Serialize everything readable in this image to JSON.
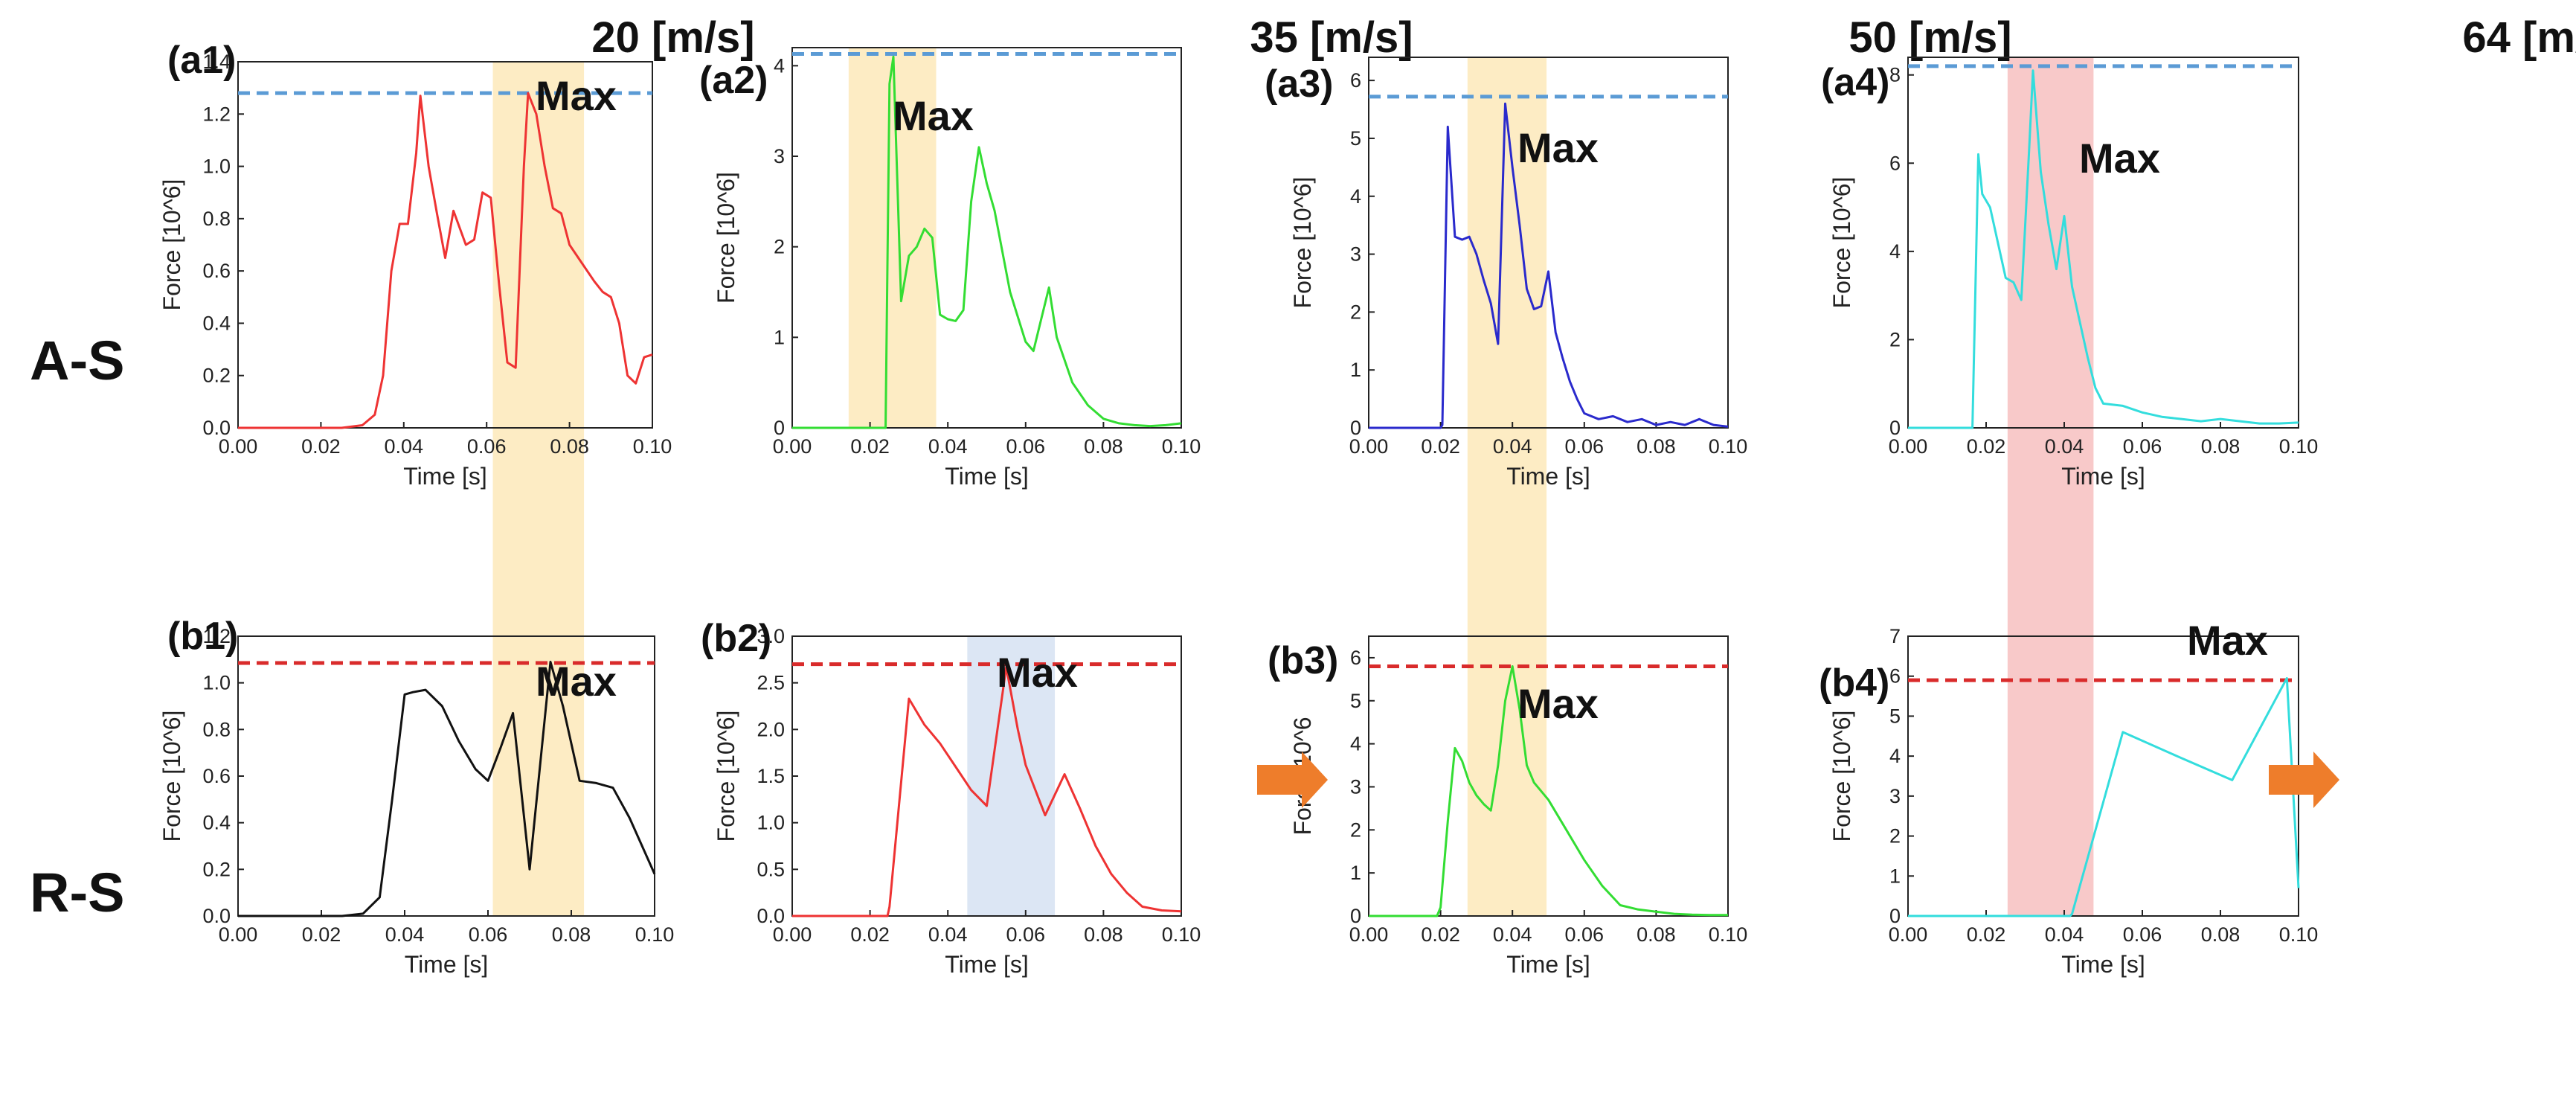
{
  "speed_headers": [
    {
      "value": "20",
      "unit": "[m/s]"
    },
    {
      "value": "35",
      "unit": "[m/s]"
    },
    {
      "value": "50",
      "unit": "[m/s]"
    },
    {
      "value": "64",
      "unit": "[m/s]"
    }
  ],
  "row_labels": [
    "A-S",
    "R-S"
  ],
  "colors": {
    "highlight_yellow": "#fdecc4",
    "highlight_blue": "#dce6f4",
    "highlight_red": "#f8c9c9",
    "max_line_blue": "#5b9bd5",
    "max_line_red": "#d92b2b",
    "arrow_orange": "#ee7d2b"
  },
  "chart_data": [
    {
      "id": "a1",
      "panel_label": "(a1)",
      "type": "line",
      "color": "#ee3333",
      "xlabel": "Time [s]",
      "ylabel": "Force [10^6]",
      "xlim": [
        0,
        0.1
      ],
      "ylim": [
        0,
        1.4
      ],
      "xticks": [
        0,
        0.02,
        0.04,
        0.06,
        0.08,
        0.1
      ],
      "xtick_labels": [
        "0.00",
        "0.02",
        "0.04",
        "0.06",
        "0.08",
        "0.10"
      ],
      "yticks": [
        0,
        0.2,
        0.4,
        0.6,
        0.8,
        1.0,
        1.2,
        1.4
      ],
      "ytick_labels": [
        "0.0",
        "0.2",
        "0.4",
        "0.6",
        "0.8",
        "1.0",
        "1.2",
        "1.4"
      ],
      "max_line": {
        "value": 1.28,
        "color": "#5b9bd5"
      },
      "highlight": {
        "x_range": [
          0.0615,
          0.0835
        ],
        "color": "#fdecc4",
        "span": "both-rows"
      },
      "max_annotation": "Max",
      "x": [
        0,
        0.025,
        0.03,
        0.033,
        0.035,
        0.037,
        0.039,
        0.041,
        0.043,
        0.044,
        0.046,
        0.048,
        0.05,
        0.052,
        0.055,
        0.057,
        0.059,
        0.061,
        0.063,
        0.065,
        0.067,
        0.069,
        0.07,
        0.072,
        0.074,
        0.076,
        0.078,
        0.08,
        0.083,
        0.086,
        0.088,
        0.09,
        0.092,
        0.094,
        0.096,
        0.098,
        0.1
      ],
      "y": [
        0,
        0,
        0.01,
        0.05,
        0.2,
        0.6,
        0.78,
        0.78,
        1.05,
        1.27,
        1.0,
        0.82,
        0.65,
        0.83,
        0.7,
        0.72,
        0.9,
        0.88,
        0.55,
        0.25,
        0.23,
        1.0,
        1.28,
        1.2,
        1.0,
        0.84,
        0.82,
        0.7,
        0.63,
        0.56,
        0.52,
        0.5,
        0.4,
        0.2,
        0.17,
        0.27,
        0.28
      ]
    },
    {
      "id": "a2",
      "panel_label": "(a2)",
      "type": "line",
      "color": "#33dd33",
      "xlabel": "Time [s]",
      "ylabel": "Force [10^6]",
      "xlim": [
        0,
        0.1
      ],
      "ylim": [
        0,
        4.2
      ],
      "xticks": [
        0,
        0.02,
        0.04,
        0.06,
        0.08,
        0.1
      ],
      "xtick_labels": [
        "0.00",
        "0.02",
        "0.04",
        "0.06",
        "0.08",
        "0.10"
      ],
      "yticks": [
        0,
        1,
        2,
        3,
        4
      ],
      "ytick_labels": [
        "0",
        "1",
        "2",
        "3",
        "4"
      ],
      "max_line": {
        "value": 4.13,
        "color": "#5b9bd5"
      },
      "highlight": {
        "x_range": [
          0.0145,
          0.037
        ],
        "color": "#fdecc4",
        "span": "panel"
      },
      "max_annotation": "Max",
      "x": [
        0,
        0.0185,
        0.02,
        0.022,
        0.024,
        0.025,
        0.026,
        0.028,
        0.03,
        0.032,
        0.034,
        0.036,
        0.038,
        0.04,
        0.042,
        0.044,
        0.046,
        0.048,
        0.05,
        0.052,
        0.056,
        0.06,
        0.062,
        0.064,
        0.066,
        0.068,
        0.072,
        0.076,
        0.08,
        0.084,
        0.088,
        0.092,
        0.096,
        0.1
      ],
      "y": [
        0,
        0,
        0,
        0,
        0,
        3.8,
        4.1,
        1.4,
        1.9,
        2.0,
        2.2,
        2.1,
        1.25,
        1.2,
        1.18,
        1.3,
        2.5,
        3.1,
        2.7,
        2.4,
        1.5,
        0.95,
        0.85,
        1.2,
        1.55,
        1.0,
        0.5,
        0.25,
        0.1,
        0.05,
        0.03,
        0.02,
        0.03,
        0.05
      ]
    },
    {
      "id": "a3",
      "panel_label": "(a3)",
      "type": "line",
      "color": "#2a2acc",
      "xlabel": "Time [s]",
      "ylabel": "Force [10^6]",
      "xlim": [
        0,
        0.1
      ],
      "ylim": [
        0,
        6.4
      ],
      "xticks": [
        0,
        0.02,
        0.04,
        0.06,
        0.08,
        0.1
      ],
      "xtick_labels": [
        "0.00",
        "0.02",
        "0.04",
        "0.06",
        "0.08",
        "0.10"
      ],
      "yticks": [
        0,
        1,
        2,
        3,
        4,
        5,
        6
      ],
      "ytick_labels": [
        "0",
        "1",
        "2",
        "3",
        "4",
        "5",
        "6"
      ],
      "max_line": {
        "value": 5.72,
        "color": "#5b9bd5"
      },
      "highlight": {
        "x_range": [
          0.0275,
          0.0495
        ],
        "color": "#fdecc4",
        "span": "both-rows"
      },
      "max_annotation": "Max",
      "x": [
        0,
        0.02,
        0.0205,
        0.022,
        0.024,
        0.026,
        0.028,
        0.03,
        0.032,
        0.034,
        0.036,
        0.038,
        0.04,
        0.042,
        0.044,
        0.046,
        0.048,
        0.05,
        0.052,
        0.054,
        0.056,
        0.058,
        0.06,
        0.064,
        0.068,
        0.072,
        0.076,
        0.08,
        0.084,
        0.088,
        0.092,
        0.096,
        0.1
      ],
      "y": [
        0,
        0,
        0.05,
        5.2,
        3.3,
        3.25,
        3.3,
        3.0,
        2.55,
        2.15,
        1.45,
        5.6,
        4.5,
        3.5,
        2.4,
        2.05,
        2.1,
        2.7,
        1.65,
        1.2,
        0.8,
        0.5,
        0.25,
        0.15,
        0.2,
        0.1,
        0.15,
        0.05,
        0.1,
        0.05,
        0.15,
        0.05,
        0.02
      ]
    },
    {
      "id": "a4",
      "panel_label": "(a4)",
      "type": "line",
      "color": "#33dddd",
      "xlabel": "Time [s]",
      "ylabel": "Force [10^6]",
      "xlim": [
        0,
        0.1
      ],
      "ylim": [
        0,
        8.4
      ],
      "xticks": [
        0,
        0.02,
        0.04,
        0.06,
        0.08,
        0.1
      ],
      "xtick_labels": [
        "0.00",
        "0.02",
        "0.04",
        "0.06",
        "0.08",
        "0.10"
      ],
      "yticks": [
        0,
        2,
        4,
        6,
        8
      ],
      "ytick_labels": [
        "0",
        "2",
        "4",
        "6",
        "8"
      ],
      "max_line": {
        "value": 8.2,
        "color": "#5b9bd5"
      },
      "highlight": {
        "x_range": [
          0.0255,
          0.0475
        ],
        "color": "#f8c9c9",
        "span": "both-rows"
      },
      "max_annotation": "Max",
      "x": [
        0,
        0.0165,
        0.018,
        0.019,
        0.021,
        0.023,
        0.025,
        0.027,
        0.029,
        0.031,
        0.032,
        0.034,
        0.036,
        0.038,
        0.04,
        0.042,
        0.044,
        0.046,
        0.048,
        0.05,
        0.055,
        0.06,
        0.065,
        0.07,
        0.075,
        0.08,
        0.085,
        0.09,
        0.095,
        0.1
      ],
      "y": [
        0,
        0,
        6.2,
        5.3,
        5.0,
        4.2,
        3.4,
        3.3,
        2.9,
        6.3,
        8.1,
        5.8,
        4.6,
        3.6,
        4.8,
        3.2,
        2.4,
        1.6,
        0.9,
        0.55,
        0.5,
        0.35,
        0.25,
        0.2,
        0.15,
        0.2,
        0.15,
        0.1,
        0.1,
        0.12
      ]
    },
    {
      "id": "b1",
      "panel_label": "(b1)",
      "type": "line",
      "color": "#111111",
      "xlabel": "Time [s]",
      "ylabel": "Force [10^6]",
      "xlim": [
        0,
        0.1
      ],
      "ylim": [
        0,
        1.2
      ],
      "xticks": [
        0,
        0.02,
        0.04,
        0.06,
        0.08,
        0.1
      ],
      "xtick_labels": [
        "0.00",
        "0.02",
        "0.04",
        "0.06",
        "0.08",
        "0.10"
      ],
      "yticks": [
        0,
        0.2,
        0.4,
        0.6,
        0.8,
        1.0,
        1.2
      ],
      "ytick_labels": [
        "0.0",
        "0.2",
        "0.4",
        "0.6",
        "0.8",
        "1.0",
        "1.2"
      ],
      "max_line": {
        "value": 1.085,
        "color": "#d92b2b"
      },
      "highlight": null,
      "max_annotation": "Max",
      "x": [
        0,
        0.025,
        0.03,
        0.034,
        0.037,
        0.04,
        0.042,
        0.045,
        0.049,
        0.053,
        0.057,
        0.06,
        0.063,
        0.066,
        0.07,
        0.075,
        0.078,
        0.082,
        0.086,
        0.09,
        0.094,
        0.1
      ],
      "y": [
        0,
        0,
        0.01,
        0.08,
        0.5,
        0.95,
        0.96,
        0.97,
        0.9,
        0.75,
        0.63,
        0.58,
        0.72,
        0.87,
        0.2,
        1.09,
        0.9,
        0.58,
        0.57,
        0.55,
        0.42,
        0.18
      ]
    },
    {
      "id": "b2",
      "panel_label": "(b2)",
      "type": "line",
      "color": "#ee3333",
      "xlabel": "Time [s]",
      "ylabel": "Force [10^6]",
      "xlim": [
        0,
        0.1
      ],
      "ylim": [
        0,
        3.0
      ],
      "xticks": [
        0,
        0.02,
        0.04,
        0.06,
        0.08,
        0.1
      ],
      "xtick_labels": [
        "0.00",
        "0.02",
        "0.04",
        "0.06",
        "0.08",
        "0.10"
      ],
      "yticks": [
        0,
        0.5,
        1.0,
        1.5,
        2.0,
        2.5,
        3.0
      ],
      "ytick_labels": [
        "0.0",
        "0.5",
        "1.0",
        "1.5",
        "2.0",
        "2.5",
        "3.0"
      ],
      "max_line": {
        "value": 2.7,
        "color": "#d92b2b"
      },
      "highlight": {
        "x_range": [
          0.045,
          0.0675
        ],
        "color": "#dce6f4",
        "span": "panel"
      },
      "max_annotation": "Max",
      "x": [
        0,
        0.0245,
        0.025,
        0.03,
        0.034,
        0.038,
        0.042,
        0.046,
        0.05,
        0.055,
        0.058,
        0.06,
        0.065,
        0.07,
        0.074,
        0.078,
        0.082,
        0.086,
        0.09,
        0.095,
        0.1
      ],
      "y": [
        0,
        0,
        0.1,
        2.33,
        2.05,
        1.85,
        1.6,
        1.35,
        1.18,
        2.67,
        2.0,
        1.62,
        1.08,
        1.52,
        1.15,
        0.75,
        0.45,
        0.25,
        0.1,
        0.06,
        0.05
      ]
    },
    {
      "id": "b3",
      "panel_label": "(b3)",
      "type": "line",
      "color": "#33dd33",
      "xlabel": "Time [s]",
      "ylabel": "Force 10^6",
      "xlim": [
        0,
        0.1
      ],
      "ylim": [
        0,
        6.5
      ],
      "xticks": [
        0,
        0.02,
        0.04,
        0.06,
        0.08,
        0.1
      ],
      "xtick_labels": [
        "0.00",
        "0.02",
        "0.04",
        "0.06",
        "0.08",
        "0.10"
      ],
      "yticks": [
        0,
        1,
        2,
        3,
        4,
        5,
        6
      ],
      "ytick_labels": [
        "0",
        "1",
        "2",
        "3",
        "4",
        "5",
        "6"
      ],
      "max_line": {
        "value": 5.8,
        "color": "#d92b2b"
      },
      "highlight": null,
      "max_annotation": "Max",
      "x": [
        0,
        0.019,
        0.02,
        0.022,
        0.024,
        0.026,
        0.028,
        0.03,
        0.032,
        0.034,
        0.036,
        0.038,
        0.04,
        0.042,
        0.044,
        0.046,
        0.05,
        0.055,
        0.06,
        0.065,
        0.07,
        0.075,
        0.08,
        0.085,
        0.09,
        0.095,
        0.1
      ],
      "y": [
        0,
        0,
        0.2,
        2.2,
        3.9,
        3.6,
        3.1,
        2.8,
        2.6,
        2.45,
        3.5,
        5.0,
        5.8,
        4.8,
        3.5,
        3.1,
        2.7,
        2.0,
        1.3,
        0.7,
        0.25,
        0.15,
        0.1,
        0.05,
        0.03,
        0.02,
        0.02
      ]
    },
    {
      "id": "b4",
      "panel_label": "(b4)",
      "type": "line",
      "color": "#33dddd",
      "xlabel": "Time [s]",
      "ylabel": "Force [10^6]",
      "xlim": [
        0,
        0.1
      ],
      "ylim": [
        0,
        7
      ],
      "xticks": [
        0,
        0.02,
        0.04,
        0.06,
        0.08,
        0.1
      ],
      "xtick_labels": [
        "0.00",
        "0.02",
        "0.04",
        "0.06",
        "0.08",
        "0.10"
      ],
      "yticks": [
        0,
        1,
        2,
        3,
        4,
        5,
        6,
        7
      ],
      "ytick_labels": [
        "0",
        "1",
        "2",
        "3",
        "4",
        "5",
        "6",
        "7"
      ],
      "max_line": {
        "value": 5.9,
        "color": "#d92b2b"
      },
      "highlight": null,
      "max_annotation": "Max",
      "x": [
        0,
        0.0415,
        0.042,
        0.055,
        0.07,
        0.083,
        0.097,
        0.1
      ],
      "y": [
        0,
        0,
        0.05,
        4.6,
        3.95,
        3.4,
        5.95,
        0.7
      ]
    }
  ]
}
